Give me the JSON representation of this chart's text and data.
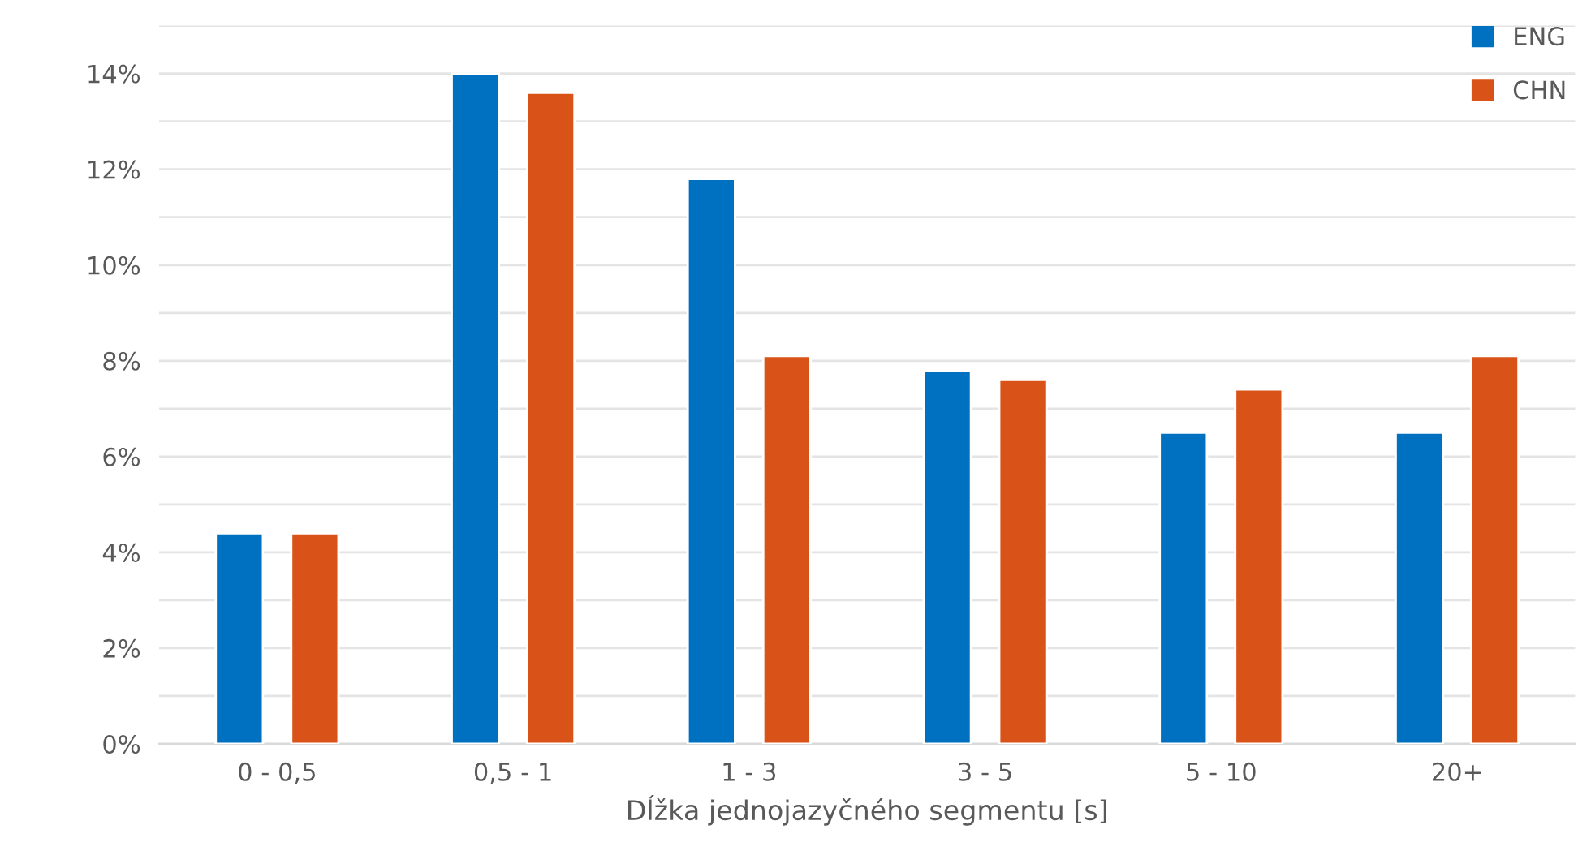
{
  "chart_data": {
    "type": "bar",
    "xlabel": "Dĺžka jednojazyčného segmentu [s]",
    "categories": [
      "0 - 0,5",
      "0,5 - 1",
      "1 - 3",
      "3 - 5",
      "5 - 10",
      "20+"
    ],
    "series": [
      {
        "name": "ENG",
        "color": "#0070c0",
        "values": [
          4.4,
          14.0,
          11.8,
          7.8,
          6.5,
          6.5
        ]
      },
      {
        "name": "CHN",
        "color": "#d95319",
        "values": [
          4.4,
          13.6,
          8.1,
          7.6,
          7.4,
          8.1
        ]
      }
    ],
    "ylim": [
      0,
      15
    ],
    "yticks": [
      {
        "value": 0,
        "label": "0%"
      },
      {
        "value": 1,
        "label": null
      },
      {
        "value": 2,
        "label": "2%"
      },
      {
        "value": 3,
        "label": null
      },
      {
        "value": 4,
        "label": "4%"
      },
      {
        "value": 5,
        "label": null
      },
      {
        "value": 6,
        "label": "6%"
      },
      {
        "value": 7,
        "label": null
      },
      {
        "value": 8,
        "label": "8%"
      },
      {
        "value": 9,
        "label": null
      },
      {
        "value": 10,
        "label": "10%"
      },
      {
        "value": 11,
        "label": null
      },
      {
        "value": 12,
        "label": "12%"
      },
      {
        "value": 13,
        "label": null
      },
      {
        "value": 14,
        "label": "14%"
      },
      {
        "value": 15,
        "label": null
      }
    ],
    "grid": "y",
    "legend": "top right"
  }
}
